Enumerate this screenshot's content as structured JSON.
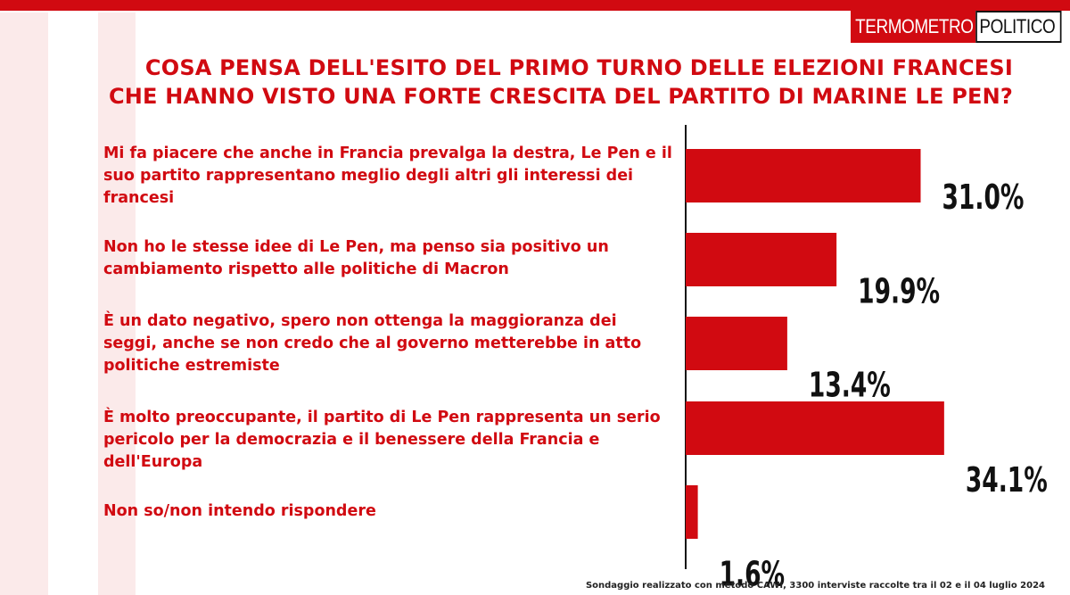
{
  "brand": {
    "part1": "TERMOMETRO",
    "part2": "POLITICO"
  },
  "title": {
    "line1": "COSA PENSA DELL'ESITO DEL PRIMO TURNO DELLE ELEZIONI FRANCESI",
    "line2": "CHE HANNO VISTO UNA FORTE CRESCITA DEL PARTITO DI MARINE LE PEN?"
  },
  "colors": {
    "accent": "#d10a11",
    "values": "#111111",
    "background_shape": "#fbeaea"
  },
  "chart_data": {
    "type": "bar",
    "orientation": "horizontal",
    "categories": [
      "Mi fa piacere che anche in Francia prevalga la destra, Le Pen e il suo partito rappresentano meglio degli altri gli interessi dei francesi",
      "Non ho le stesse idee di Le Pen, ma penso sia positivo un cambiamento rispetto alle politiche di Macron",
      "È un dato negativo, spero non ottenga la maggioranza dei seggi, anche se non credo che al governo metterebbe in atto politiche estremiste",
      "È molto preoccupante, il partito di Le Pen rappresenta un serio pericolo per la democrazia e il benessere della Francia e dell'Europa",
      "Non so/non intendo rispondere"
    ],
    "values": [
      31.0,
      19.9,
      13.4,
      34.1,
      1.6
    ],
    "value_labels": [
      "31.0%",
      "19.9%",
      "13.4%",
      "34.1%",
      "1.6%"
    ],
    "unit": "%",
    "grid": false,
    "legend": false
  },
  "footnote": "Sondaggio realizzato con metodo CAWI, 3300 interviste raccolte tra il 02 e il 04 luglio 2024"
}
